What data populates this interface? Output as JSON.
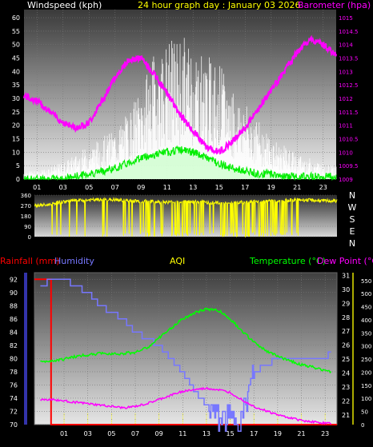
{
  "header": {
    "windspeed_label": "Windspeed (kph)",
    "graph_title": "24 hour graph day : January 03 2026",
    "barometer_label": "Barometer (hpa)"
  },
  "panel3_header": {
    "rainfall_label": "Rainfall (mm)",
    "humidity_label": "Humidity",
    "aqi_label": "AQI",
    "temperature_label": "Temperature (°C)",
    "dewpoint_label": "Dew Point (°C)"
  },
  "colors": {
    "wind": "#ffffff",
    "gust": "#dddddd",
    "wind_avg": "#00ee00",
    "barometer": "#ff00ff",
    "direction": "#ffff00",
    "rain": "#ff0000",
    "humidity": "#7777ff",
    "temperature": "#00ff00",
    "dewpoint": "#ff00ff",
    "aqi": "#ffff00"
  },
  "chart_data": [
    {
      "type": "line",
      "title": "24 hour graph day : January 03 2026",
      "xlabel": "",
      "x_ticks": [
        "01",
        "03",
        "05",
        "07",
        "09",
        "11",
        "13",
        "15",
        "17",
        "19",
        "21",
        "23"
      ],
      "y_left": {
        "label": "Windspeed (kph)",
        "ticks": [
          "0",
          "5",
          "10",
          "15",
          "20",
          "25",
          "30",
          "35",
          "40",
          "45",
          "50",
          "55",
          "60"
        ],
        "range": [
          0,
          63
        ]
      },
      "y_right": {
        "label": "Barometer (hpa)",
        "ticks": [
          "1009",
          "1009.5",
          "1010",
          "1010.5",
          "1011",
          "1011.5",
          "1012",
          "1012.5",
          "1013",
          "1013.5",
          "1014",
          "1014.5",
          "1015"
        ],
        "range": [
          1009,
          1015.3
        ]
      },
      "series": [
        {
          "name": "Windspeed (kph)",
          "axis": "left",
          "x": [
            0,
            1,
            2,
            3,
            4,
            5,
            6,
            7,
            8,
            9,
            10,
            11,
            12,
            13,
            14,
            15,
            16,
            17,
            18,
            19,
            20,
            21,
            22,
            23,
            24
          ],
          "values": [
            2,
            2,
            3,
            4,
            6,
            8,
            10,
            12,
            16,
            22,
            30,
            33,
            35,
            33,
            30,
            28,
            22,
            18,
            14,
            10,
            8,
            6,
            5,
            4,
            3
          ]
        },
        {
          "name": "Wind Average",
          "axis": "left",
          "x": [
            0,
            1,
            2,
            3,
            4,
            5,
            6,
            7,
            8,
            9,
            10,
            11,
            12,
            13,
            14,
            15,
            16,
            17,
            18,
            19,
            20,
            21,
            22,
            23,
            24
          ],
          "values": [
            0,
            0,
            0,
            0,
            1,
            2,
            3,
            4,
            6,
            8,
            9,
            10,
            11,
            10,
            8,
            6,
            4,
            3,
            2,
            2,
            1,
            1,
            1,
            1,
            1
          ]
        },
        {
          "name": "Barometer (hpa)",
          "axis": "right",
          "x": [
            0,
            1,
            2,
            3,
            4,
            5,
            6,
            7,
            8,
            9,
            10,
            11,
            12,
            13,
            14,
            15,
            16,
            17,
            18,
            19,
            20,
            21,
            22,
            23,
            24
          ],
          "values": [
            1012.1,
            1011.9,
            1011.5,
            1011.1,
            1010.9,
            1011.1,
            1011.9,
            1012.8,
            1013.4,
            1013.5,
            1012.9,
            1012.2,
            1011.4,
            1010.8,
            1010.2,
            1010.0,
            1010.4,
            1010.9,
            1011.6,
            1012.3,
            1013.0,
            1013.7,
            1014.2,
            1014.0,
            1013.6
          ]
        }
      ]
    },
    {
      "type": "line",
      "title": "",
      "x_ticks": [],
      "y_left": {
        "ticks": [
          "0",
          "90",
          "180",
          "270",
          "360"
        ],
        "range": [
          0,
          360
        ]
      },
      "y_right": {
        "ticks": [
          "N",
          "W",
          "S",
          "E",
          "N"
        ]
      },
      "series": [
        {
          "name": "Wind Direction",
          "x": [
            0,
            1,
            2,
            3,
            4,
            5,
            6,
            7,
            8,
            9,
            10,
            11,
            12,
            13,
            14,
            15,
            16,
            17,
            18,
            19,
            20,
            21,
            22,
            23,
            24
          ],
          "values": [
            270,
            275,
            300,
            310,
            315,
            320,
            320,
            315,
            310,
            305,
            300,
            300,
            305,
            300,
            295,
            290,
            295,
            300,
            305,
            310,
            315,
            320,
            315,
            310,
            310
          ]
        }
      ]
    },
    {
      "type": "line",
      "title": "",
      "x_ticks": [
        "01",
        "03",
        "05",
        "07",
        "09",
        "11",
        "13",
        "15",
        "17",
        "19",
        "21",
        "23"
      ],
      "y_left": {
        "label": "Humidity",
        "ticks": [
          "70",
          "72",
          "74",
          "76",
          "78",
          "80",
          "82",
          "84",
          "86",
          "88",
          "90",
          "92"
        ],
        "range": [
          70,
          93
        ]
      },
      "y_right_1": {
        "label": "Temperature (°C)",
        "ticks": [
          "21",
          "22",
          "23",
          "24",
          "25",
          "26",
          "27",
          "28",
          "29",
          "30",
          "31"
        ],
        "range": [
          20.3,
          31.2
        ]
      },
      "y_right_2": {
        "label": "AQI",
        "ticks": [
          "0",
          "50",
          "100",
          "150",
          "200",
          "250",
          "300",
          "350",
          "400",
          "450",
          "500",
          "550"
        ],
        "range": [
          0,
          580
        ]
      },
      "series": [
        {
          "name": "Rainfall (mm)",
          "axis": "left",
          "x": [
            -1.5,
            -0.1,
            -0.1,
            24
          ],
          "values": [
            92,
            92,
            70,
            70
          ]
        },
        {
          "name": "Humidity",
          "axis": "left",
          "x": [
            -1,
            0,
            1,
            2,
            3,
            4,
            5,
            6,
            7,
            8,
            9,
            10,
            11,
            12,
            13,
            14,
            15,
            16,
            17,
            18,
            19,
            20,
            21,
            22,
            23,
            23.5
          ],
          "values": [
            91,
            92,
            92,
            91,
            90,
            88,
            87,
            86,
            84,
            83,
            82,
            80,
            78,
            75,
            73,
            71,
            71,
            71,
            78,
            79,
            80,
            80,
            80,
            80,
            80,
            81
          ]
        },
        {
          "name": "Temperature (°C)",
          "axis": "right_1",
          "x": [
            -1,
            0,
            1,
            2,
            3,
            4,
            5,
            6,
            7,
            8,
            9,
            10,
            11,
            12,
            13,
            14,
            15,
            16,
            17,
            18,
            19,
            20,
            21,
            22,
            23,
            23.5
          ],
          "values": [
            24.8,
            24.9,
            25.0,
            25.2,
            25.3,
            25.4,
            25.4,
            25.4,
            25.5,
            25.8,
            26.5,
            27.2,
            27.9,
            28.3,
            28.6,
            28.5,
            27.9,
            27.0,
            26.2,
            25.6,
            25.2,
            24.9,
            24.6,
            24.4,
            24.2,
            24.1
          ]
        },
        {
          "name": "Dew Point (°C)",
          "axis": "right_1",
          "x": [
            -1,
            0,
            1,
            2,
            3,
            4,
            5,
            6,
            7,
            8,
            9,
            10,
            11,
            12,
            13,
            14,
            15,
            16,
            17,
            18,
            19,
            20,
            21,
            22,
            23,
            23.5
          ],
          "values": [
            22.1,
            22.1,
            22.0,
            21.9,
            21.8,
            21.7,
            21.6,
            21.5,
            21.6,
            21.8,
            22.1,
            22.4,
            22.7,
            22.8,
            22.9,
            22.8,
            22.6,
            22.1,
            21.6,
            21.3,
            21.0,
            20.8,
            20.6,
            20.5,
            20.4,
            20.4
          ]
        }
      ]
    }
  ]
}
